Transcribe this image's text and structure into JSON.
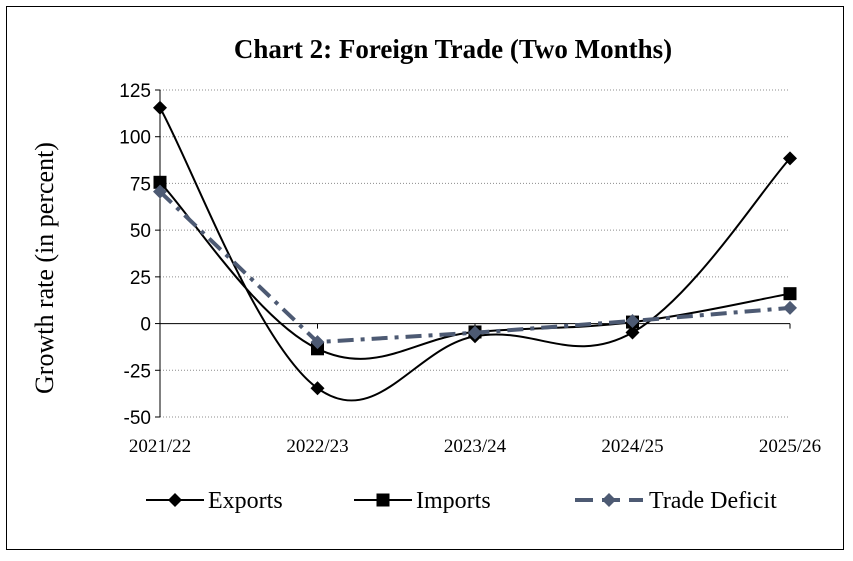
{
  "chart_data": {
    "type": "line",
    "title": "Chart 2: Foreign Trade (Two Months)",
    "xlabel": "",
    "ylabel": "Growth rate (in percent)",
    "categories": [
      "2021/22",
      "2022/23",
      "2023/24",
      "2024/25",
      "2025/26"
    ],
    "ylim": [
      -50,
      125
    ],
    "yticks": [
      -50,
      -25,
      0,
      25,
      50,
      75,
      100,
      125
    ],
    "grid": true,
    "legend_position": "bottom",
    "series": [
      {
        "name": "Exports",
        "values": [
          115.5,
          -34.6,
          -6.8,
          -4.8,
          88.4
        ],
        "color": "#000000",
        "marker": "diamond",
        "line": "solid-smooth"
      },
      {
        "name": "Imports",
        "values": [
          75.6,
          -13.5,
          -4.5,
          0.8,
          16.0
        ],
        "color": "#000000",
        "marker": "square",
        "line": "solid-smooth"
      },
      {
        "name": "Trade Deficit",
        "values": [
          70.6,
          -9.9,
          -4.9,
          1.4,
          8.4
        ],
        "color": "#4d5a73",
        "marker": "diamond",
        "line": "dashdot"
      }
    ]
  }
}
